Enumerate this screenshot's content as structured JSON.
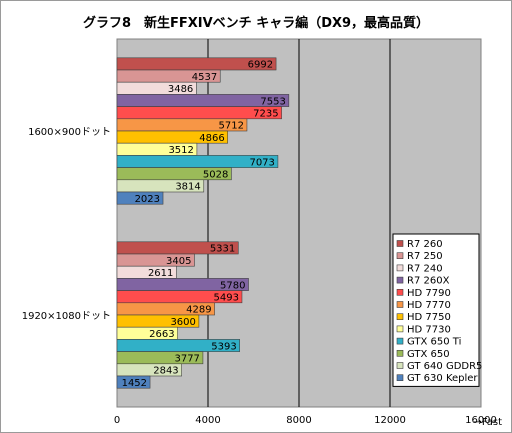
{
  "chart_data": {
    "type": "bar",
    "orientation": "horizontal",
    "title": "グラフ8　新生FFXIVベンチ キャラ編（DX9，最高品質）",
    "xlabel": "→Fast",
    "xlim": [
      0,
      16000
    ],
    "xticks": [
      "0",
      "4000",
      "8000",
      "12000",
      "16000"
    ],
    "grid": true,
    "legend_position": "bottom-right",
    "categories": [
      "1600×900ドット",
      "1920×1080ドット"
    ],
    "series": [
      {
        "name": "R7 260",
        "color": "#c0504d",
        "values": [
          6992,
          5331
        ]
      },
      {
        "name": "R7 250",
        "color": "#d99594",
        "values": [
          4537,
          3405
        ]
      },
      {
        "name": "R7 240",
        "color": "#f2dcdb",
        "values": [
          3486,
          2611
        ]
      },
      {
        "name": "R7 260X",
        "color": "#8064a2",
        "values": [
          7553,
          5780
        ]
      },
      {
        "name": "HD 7790",
        "color": "#ff4d4d",
        "values": [
          7235,
          5493
        ]
      },
      {
        "name": "HD 7770",
        "color": "#f79646",
        "values": [
          5712,
          4289
        ]
      },
      {
        "name": "HD 7750",
        "color": "#ffc000",
        "values": [
          4866,
          3600
        ]
      },
      {
        "name": "HD 7730",
        "color": "#ffff99",
        "values": [
          3512,
          2663
        ]
      },
      {
        "name": "GTX 650 Ti",
        "color": "#31b0c7",
        "values": [
          7073,
          5393
        ]
      },
      {
        "name": "GTX 650",
        "color": "#9bbb59",
        "values": [
          5028,
          3777
        ]
      },
      {
        "name": "GT 640 GDDR5",
        "color": "#d7e4bd",
        "values": [
          3814,
          2843
        ]
      },
      {
        "name": "GT 630 Kepler",
        "color": "#4f81bd",
        "values": [
          2023,
          1452
        ]
      }
    ]
  }
}
